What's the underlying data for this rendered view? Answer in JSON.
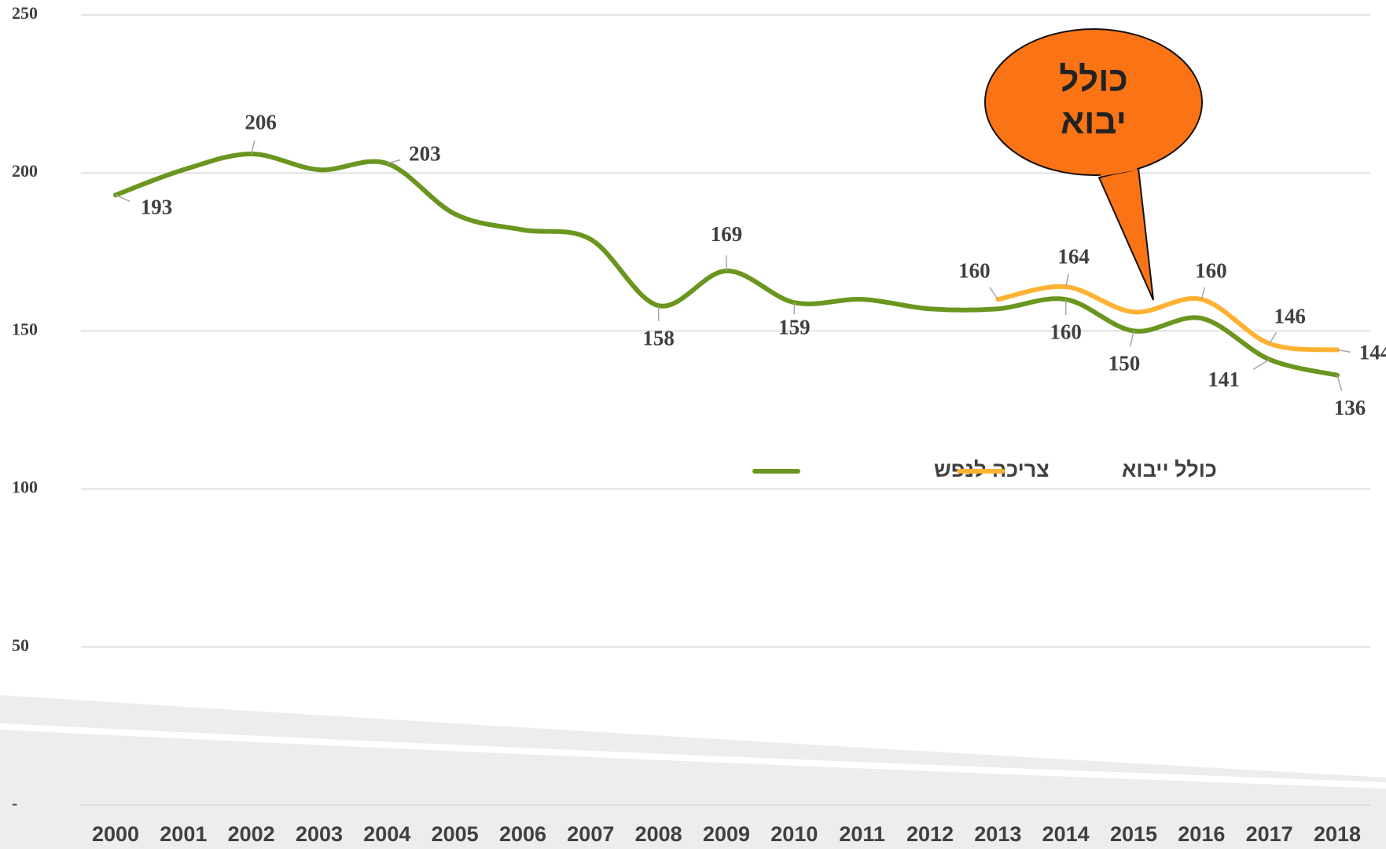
{
  "chart_data": {
    "type": "line",
    "categories": [
      "2000",
      "2001",
      "2002",
      "2003",
      "2004",
      "2005",
      "2006",
      "2007",
      "2008",
      "2009",
      "2010",
      "2011",
      "2012",
      "2013",
      "2014",
      "2015",
      "2016",
      "2017",
      "2018"
    ],
    "series": [
      {
        "name": "צריכה לנפש",
        "color": "#6a961f",
        "values": [
          193,
          201,
          206,
          201,
          203,
          187,
          182,
          179,
          158,
          169,
          159,
          160,
          157,
          157,
          160,
          150,
          154,
          141,
          136
        ],
        "value_labels": [
          193,
          null,
          206,
          null,
          203,
          null,
          null,
          null,
          158,
          169,
          159,
          null,
          null,
          null,
          160,
          150,
          null,
          141,
          136
        ]
      },
      {
        "name": "כולל ייבוא",
        "color": "#ffb232",
        "values": [
          null,
          null,
          null,
          null,
          null,
          null,
          null,
          null,
          null,
          null,
          null,
          null,
          null,
          160,
          164,
          156,
          160,
          146,
          144
        ],
        "value_labels": [
          null,
          null,
          null,
          null,
          null,
          null,
          null,
          null,
          null,
          null,
          null,
          null,
          null,
          160,
          164,
          null,
          160,
          146,
          144
        ]
      }
    ],
    "annotation": [
      "כולל",
      "יבוא"
    ],
    "ylim": [
      0,
      250
    ],
    "yticks": [
      {
        "value": 0,
        "label": "-"
      },
      50,
      100,
      150,
      200,
      250
    ],
    "grid": true
  }
}
